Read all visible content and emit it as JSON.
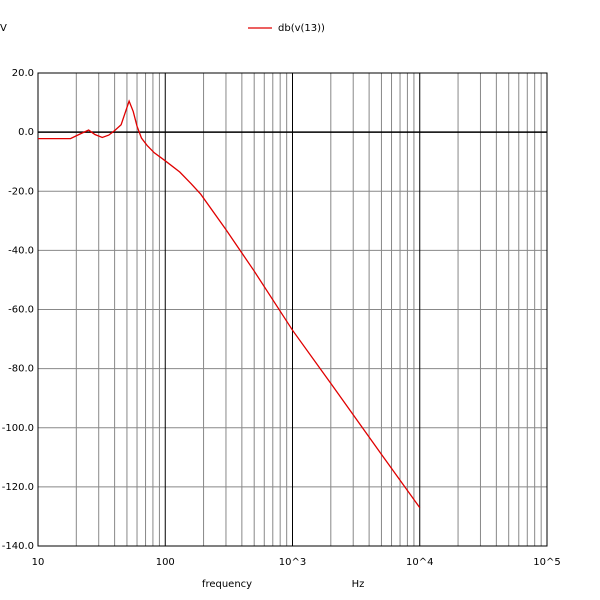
{
  "chart_data": {
    "type": "line",
    "ylabel": "V",
    "xlabel": "frequency",
    "xunit": "Hz",
    "xscale": "log",
    "grid": true,
    "minor_grid": true,
    "legend": "top",
    "xlim": [
      10,
      100000
    ],
    "xticks": [
      10,
      100,
      {
        "value": 1000,
        "label": "10^3"
      },
      {
        "value": 10000,
        "label": "10^4"
      },
      {
        "value": 100000,
        "label": "10^5"
      }
    ],
    "ylim": [
      -140,
      20
    ],
    "yticks": [
      {
        "value": 20,
        "label": "20.0"
      },
      {
        "value": 0,
        "label": "0.0"
      },
      {
        "value": -20,
        "label": "-20.0"
      },
      {
        "value": -40,
        "label": "-40.0"
      },
      {
        "value": -60,
        "label": "-60.0"
      },
      {
        "value": -80,
        "label": "-80.0"
      },
      {
        "value": -100,
        "label": "-100.0"
      },
      {
        "value": -120,
        "label": "-120.0"
      },
      {
        "value": -140,
        "label": "-140.0"
      }
    ],
    "series": [
      {
        "name": "db(v(13))",
        "color": "#e00000",
        "x": [
          10,
          18,
          21,
          25,
          28,
          32,
          36,
          40,
          45,
          52,
          56,
          60,
          65,
          72,
          82,
          100,
          130,
          160,
          190,
          300,
          500,
          1000,
          2000,
          5000,
          10000
        ],
        "values": [
          -2.2,
          -2.2,
          -0.8,
          0.7,
          -0.8,
          -1.8,
          -1,
          0.5,
          2.5,
          10.5,
          7,
          2,
          -2,
          -4.5,
          -7,
          -9.7,
          -13.5,
          -17.5,
          -21,
          -33,
          -47,
          -67,
          -85,
          -109,
          -127
        ]
      }
    ]
  }
}
